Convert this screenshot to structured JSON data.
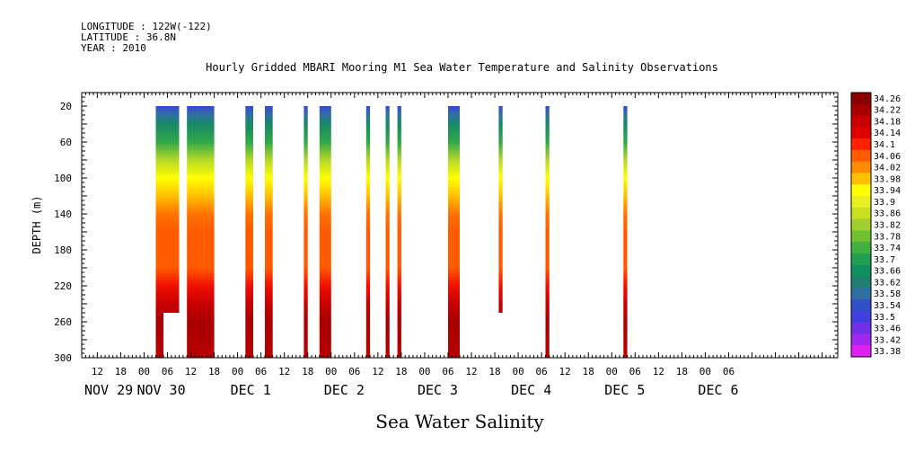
{
  "header": {
    "longitude": "LONGITUDE : 122W(-122)",
    "latitude": "LATITUDE : 36.8N",
    "year": "YEAR : 2010",
    "title": "Hourly Gridded MBARI Mooring M1 Sea Water Temperature and Salinity Observations"
  },
  "chart_data": {
    "type": "heatmap",
    "title": "Hourly Gridded MBARI Mooring M1 Sea Water Temperature and Salinity Observations",
    "xlabel": "Sea Water Salinity",
    "ylabel": "DEPTH (m)",
    "ylim": [
      300,
      0
    ],
    "y_ticks": [
      20,
      60,
      100,
      140,
      180,
      220,
      260,
      300
    ],
    "x_hour_ticks": [
      "12",
      "18",
      "00",
      "06",
      "12",
      "18",
      "00",
      "06",
      "12",
      "18",
      "00",
      "06",
      "12",
      "18",
      "00",
      "06",
      "12",
      "18",
      "00",
      "06",
      "12",
      "18",
      "00",
      "06",
      "12",
      "18",
      "00",
      "06"
    ],
    "x_day_labels": [
      "NOV 29",
      "NOV 30",
      "DEC  1",
      "DEC  2",
      "DEC  3",
      "DEC  4",
      "DEC  5",
      "DEC  6"
    ],
    "colorbar": {
      "levels": [
        "34.26",
        "34.22",
        "34.18",
        "34.14",
        "34.1",
        "34.06",
        "34.02",
        "33.98",
        "33.94",
        "33.9",
        "33.86",
        "33.82",
        "33.78",
        "33.74",
        "33.7",
        "33.66",
        "33.62",
        "33.58",
        "33.54",
        "33.5",
        "33.46",
        "33.42",
        "33.38"
      ]
    },
    "profile": {
      "depth": [
        20,
        30,
        40,
        60,
        80,
        100,
        120,
        140,
        160,
        200,
        220,
        240,
        260,
        300
      ],
      "salinity": [
        33.52,
        33.58,
        33.64,
        33.72,
        33.84,
        33.94,
        33.98,
        34.04,
        34.06,
        34.06,
        34.12,
        34.18,
        34.22,
        34.2
      ]
    },
    "segments": [
      {
        "start": "Nov 30 03:00",
        "end": "Nov 30 09:00",
        "top": 20,
        "bottom": 300,
        "gap_start": "Nov 30 05:00",
        "gap_top": 250
      },
      {
        "start": "Nov 30 11:00",
        "end": "Nov 30 18:00",
        "top": 20,
        "bottom": 300
      },
      {
        "start": "Dec 1 02:00",
        "end": "Dec 1 04:00",
        "top": 20,
        "bottom": 300
      },
      {
        "start": "Dec 1 07:00",
        "end": "Dec 1 09:00",
        "top": 20,
        "bottom": 300
      },
      {
        "start": "Dec 1 17:00",
        "end": "Dec 1 18:00",
        "top": 20,
        "bottom": 300
      },
      {
        "start": "Dec 1 21:00",
        "end": "Dec 2 00:00",
        "top": 20,
        "bottom": 300
      },
      {
        "start": "Dec 2 09:00",
        "end": "Dec 2 10:00",
        "top": 20,
        "bottom": 300
      },
      {
        "start": "Dec 2 14:00",
        "end": "Dec 2 15:00",
        "top": 20,
        "bottom": 300
      },
      {
        "start": "Dec 2 17:00",
        "end": "Dec 2 18:00",
        "top": 20,
        "bottom": 300
      },
      {
        "start": "Dec 3 06:00",
        "end": "Dec 3 09:00",
        "top": 20,
        "bottom": 300
      },
      {
        "start": "Dec 3 19:00",
        "end": "Dec 3 20:00",
        "top": 20,
        "bottom": 250
      },
      {
        "start": "Dec 4 07:00",
        "end": "Dec 4 08:00",
        "top": 20,
        "bottom": 300
      },
      {
        "start": "Dec 5 03:00",
        "end": "Dec 5 04:00",
        "top": 20,
        "bottom": 300
      }
    ]
  }
}
